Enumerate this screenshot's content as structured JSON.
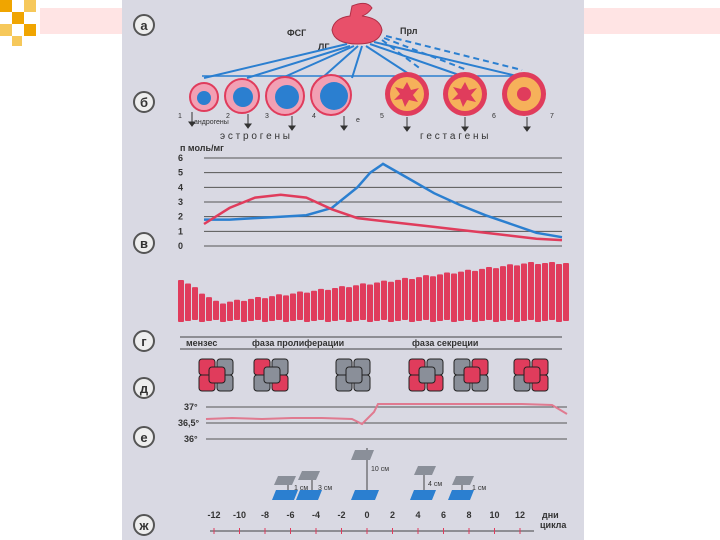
{
  "slide": {
    "accent": "#f0a500",
    "bar_color": "#ffe4e4",
    "figure_bg": "#d9d9e3"
  },
  "row_letters": [
    "а",
    "б",
    "в",
    "г",
    "д",
    "е",
    "ж"
  ],
  "hormones": {
    "fsh": "ФСГ",
    "lh": "ЛГ",
    "prl": "Прл"
  },
  "follicles": {
    "numbers": [
      "1",
      "2",
      "3",
      "4",
      "5",
      "6",
      "7"
    ],
    "androgens_label": "андрогены",
    "e_label": "е",
    "estrogens_label": "э с т р о г е н ы",
    "gestagens_label": "г е с т а г е н ы"
  },
  "chart_data": {
    "type": "line",
    "ylabel": "п моль/мг",
    "yticks": [
      "0",
      "1",
      "2",
      "3",
      "4",
      "5",
      "6"
    ],
    "ylim": [
      0,
      6
    ],
    "x": [
      -14,
      -12,
      -10,
      -8,
      -6,
      -4,
      -2,
      -1,
      0,
      2,
      4,
      6,
      8,
      10,
      12,
      14
    ],
    "series": [
      {
        "color": "#2b7fd0",
        "values": [
          1.8,
          1.8,
          1.9,
          2.0,
          2.1,
          2.6,
          4.0,
          5.0,
          5.6,
          4.6,
          3.6,
          2.8,
          2.1,
          1.5,
          0.9,
          0.6
        ]
      },
      {
        "color": "#e03c5c",
        "values": [
          1.5,
          2.6,
          3.3,
          3.5,
          3.3,
          2.5,
          1.9,
          1.8,
          1.7,
          1.5,
          1.3,
          1.1,
          0.9,
          0.7,
          0.5,
          0.4
        ]
      }
    ]
  },
  "phases": {
    "menses": "мензес",
    "proliferation": "фаза пролиферации",
    "secretion": "фаза секреции"
  },
  "temperature": {
    "labels": [
      "37°",
      "36,5°",
      "36°"
    ],
    "line_color": "#e07a90"
  },
  "mucus": {
    "labels": [
      "1 см",
      "3 см",
      "10 см",
      "4 см",
      "1 см"
    ]
  },
  "days_axis": {
    "ticks": [
      "-12",
      "-10",
      "-8",
      "-6",
      "-4",
      "-2",
      "0",
      "2",
      "4",
      "6",
      "8",
      "10",
      "12"
    ],
    "unit_line1": "дни",
    "unit_line2": "цикла"
  }
}
